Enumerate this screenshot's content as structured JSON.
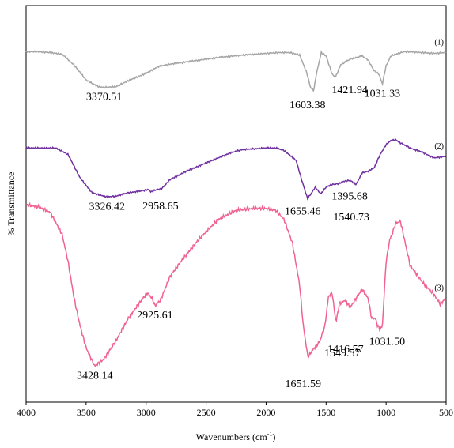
{
  "chart_data": {
    "type": "line",
    "xlabel": "Wavenumbers (cm-1)",
    "xlabel_main": "Wavenumbers (cm",
    "xlabel_sup": "-1",
    "xlabel_end": ")",
    "ylabel": "% Transmittance",
    "xlim": [
      4000,
      500
    ],
    "x_reversed": true,
    "xticks": [
      "4000",
      "3500",
      "3000",
      "2500",
      "2000",
      "1500",
      "1000",
      "500"
    ],
    "grid": false,
    "series": [
      {
        "name": "(1)",
        "color": "#a6a6a6",
        "points": [
          [
            4000,
            0.29
          ],
          [
            3900,
            0.29
          ],
          [
            3800,
            0.3
          ],
          [
            3700,
            0.32
          ],
          [
            3600,
            0.45
          ],
          [
            3500,
            0.63
          ],
          [
            3400,
            0.71
          ],
          [
            3350,
            0.72
          ],
          [
            3250,
            0.71
          ],
          [
            3150,
            0.64
          ],
          [
            3000,
            0.55
          ],
          [
            2900,
            0.47
          ],
          [
            2800,
            0.44
          ],
          [
            2600,
            0.4
          ],
          [
            2400,
            0.36
          ],
          [
            2200,
            0.33
          ],
          [
            2000,
            0.31
          ],
          [
            1900,
            0.3
          ],
          [
            1800,
            0.3
          ],
          [
            1720,
            0.33
          ],
          [
            1660,
            0.55
          ],
          [
            1630,
            0.72
          ],
          [
            1603,
            0.76
          ],
          [
            1580,
            0.55
          ],
          [
            1540,
            0.3
          ],
          [
            1500,
            0.34
          ],
          [
            1450,
            0.56
          ],
          [
            1422,
            0.6
          ],
          [
            1380,
            0.45
          ],
          [
            1300,
            0.38
          ],
          [
            1200,
            0.34
          ],
          [
            1150,
            0.39
          ],
          [
            1100,
            0.52
          ],
          [
            1060,
            0.56
          ],
          [
            1031,
            0.68
          ],
          [
            1000,
            0.46
          ],
          [
            960,
            0.34
          ],
          [
            900,
            0.31
          ],
          [
            850,
            0.29
          ],
          [
            800,
            0.29
          ],
          [
            700,
            0.3
          ],
          [
            600,
            0.31
          ],
          [
            500,
            0.3
          ]
        ]
      },
      {
        "name": "(2)",
        "color": "#7030a0",
        "points": [
          [
            4000,
            0.26
          ],
          [
            3850,
            0.26
          ],
          [
            3750,
            0.26
          ],
          [
            3650,
            0.34
          ],
          [
            3550,
            0.62
          ],
          [
            3450,
            0.8
          ],
          [
            3326,
            0.85
          ],
          [
            3250,
            0.84
          ],
          [
            3150,
            0.8
          ],
          [
            3050,
            0.78
          ],
          [
            2980,
            0.76
          ],
          [
            2959,
            0.79
          ],
          [
            2930,
            0.77
          ],
          [
            2870,
            0.75
          ],
          [
            2800,
            0.64
          ],
          [
            2650,
            0.53
          ],
          [
            2500,
            0.44
          ],
          [
            2300,
            0.32
          ],
          [
            2200,
            0.28
          ],
          [
            2000,
            0.26
          ],
          [
            1920,
            0.26
          ],
          [
            1850,
            0.29
          ],
          [
            1750,
            0.41
          ],
          [
            1700,
            0.66
          ],
          [
            1655,
            0.87
          ],
          [
            1620,
            0.8
          ],
          [
            1590,
            0.73
          ],
          [
            1560,
            0.79
          ],
          [
            1541,
            0.81
          ],
          [
            1500,
            0.73
          ],
          [
            1450,
            0.7
          ],
          [
            1396,
            0.69
          ],
          [
            1350,
            0.66
          ],
          [
            1300,
            0.65
          ],
          [
            1250,
            0.7
          ],
          [
            1200,
            0.56
          ],
          [
            1150,
            0.54
          ],
          [
            1100,
            0.5
          ],
          [
            1050,
            0.34
          ],
          [
            1000,
            0.22
          ],
          [
            960,
            0.17
          ],
          [
            920,
            0.16
          ],
          [
            880,
            0.2
          ],
          [
            840,
            0.23
          ],
          [
            800,
            0.26
          ],
          [
            700,
            0.31
          ],
          [
            600,
            0.38
          ],
          [
            500,
            0.36
          ]
        ]
      },
      {
        "name": "(3)",
        "color": "#f06292",
        "points": [
          [
            4000,
            0.04
          ],
          [
            3900,
            0.05
          ],
          [
            3800,
            0.08
          ],
          [
            3700,
            0.2
          ],
          [
            3650,
            0.35
          ],
          [
            3600,
            0.55
          ],
          [
            3550,
            0.7
          ],
          [
            3500,
            0.82
          ],
          [
            3428,
            0.92
          ],
          [
            3350,
            0.88
          ],
          [
            3250,
            0.78
          ],
          [
            3150,
            0.66
          ],
          [
            3050,
            0.57
          ],
          [
            2990,
            0.52
          ],
          [
            2950,
            0.55
          ],
          [
            2926,
            0.59
          ],
          [
            2880,
            0.56
          ],
          [
            2800,
            0.43
          ],
          [
            2700,
            0.34
          ],
          [
            2550,
            0.22
          ],
          [
            2400,
            0.12
          ],
          [
            2250,
            0.07
          ],
          [
            2100,
            0.06
          ],
          [
            2000,
            0.06
          ],
          [
            1920,
            0.07
          ],
          [
            1850,
            0.12
          ],
          [
            1780,
            0.25
          ],
          [
            1720,
            0.48
          ],
          [
            1690,
            0.7
          ],
          [
            1652,
            0.87
          ],
          [
            1610,
            0.83
          ],
          [
            1570,
            0.8
          ],
          [
            1550,
            0.78
          ],
          [
            1510,
            0.7
          ],
          [
            1480,
            0.54
          ],
          [
            1450,
            0.52
          ],
          [
            1430,
            0.62
          ],
          [
            1417,
            0.68
          ],
          [
            1390,
            0.58
          ],
          [
            1340,
            0.56
          ],
          [
            1300,
            0.6
          ],
          [
            1250,
            0.55
          ],
          [
            1200,
            0.5
          ],
          [
            1180,
            0.52
          ],
          [
            1150,
            0.55
          ],
          [
            1120,
            0.66
          ],
          [
            1090,
            0.66
          ],
          [
            1070,
            0.7
          ],
          [
            1050,
            0.72
          ],
          [
            1031,
            0.7
          ],
          [
            1000,
            0.35
          ],
          [
            970,
            0.23
          ],
          [
            950,
            0.2
          ],
          [
            920,
            0.14
          ],
          [
            880,
            0.13
          ],
          [
            840,
            0.25
          ],
          [
            800,
            0.37
          ],
          [
            700,
            0.46
          ],
          [
            600,
            0.53
          ],
          [
            550,
            0.58
          ],
          [
            500,
            0.55
          ]
        ]
      }
    ],
    "annotations": [
      {
        "text": "3370.51",
        "x": 3350,
        "series": 0
      },
      {
        "text": "1603.38",
        "x": 1603,
        "series": 0
      },
      {
        "text": "1421.94",
        "x": 1422,
        "series": 0
      },
      {
        "text": "1031.33",
        "x": 1031,
        "series": 0
      },
      {
        "text": "3326.42",
        "x": 3326,
        "series": 1
      },
      {
        "text": "2958.65",
        "x": 2959,
        "series": 1
      },
      {
        "text": "1655.46",
        "x": 1655,
        "series": 1
      },
      {
        "text": "1395.68",
        "x": 1396,
        "series": 1
      },
      {
        "text": "1540.73",
        "x": 1541,
        "series": 1
      },
      {
        "text": "3428.14",
        "x": 3428,
        "series": 2
      },
      {
        "text": "2925.61",
        "x": 2926,
        "series": 2
      },
      {
        "text": "1416.57",
        "x": 1417,
        "series": 2
      },
      {
        "text": "1549.57",
        "x": 1550,
        "series": 2
      },
      {
        "text": "1031.50",
        "x": 1031,
        "series": 2
      },
      {
        "text": "1651.59",
        "x": 1652,
        "series": 2
      }
    ]
  }
}
